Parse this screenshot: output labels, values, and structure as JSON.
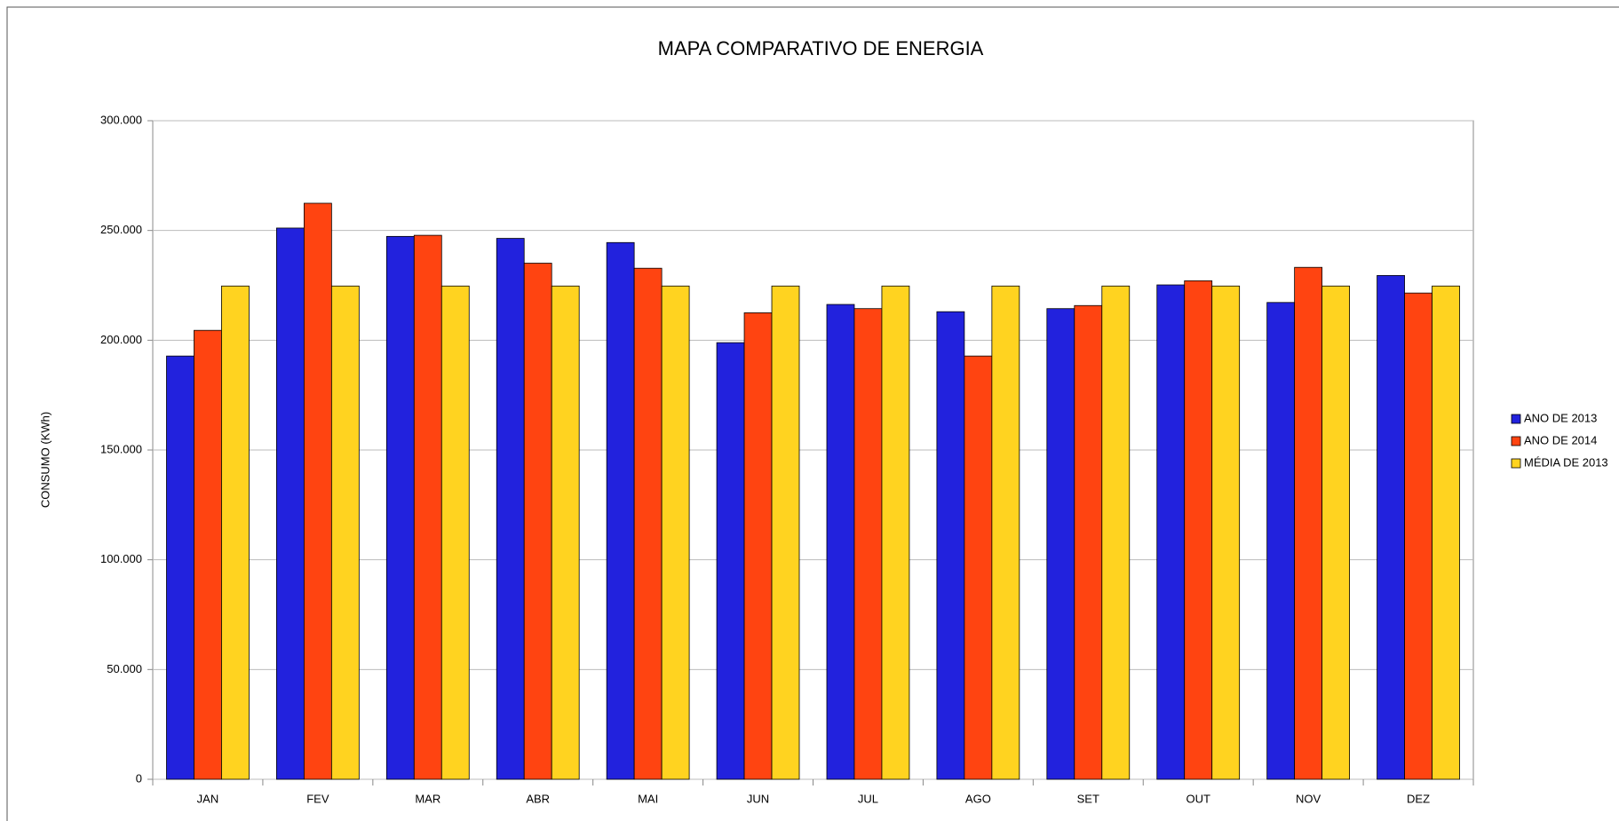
{
  "chart_data": {
    "type": "bar",
    "title": "MAPA COMPARATIVO DE ENERGIA",
    "y_label": "CONSUMO (KWh)",
    "categories": [
      "JAN",
      "FEV",
      "MAR",
      "ABR",
      "MAI",
      "JUN",
      "JUL",
      "AGO",
      "SET",
      "OUT",
      "NOV",
      "DEZ"
    ],
    "series": [
      {
        "name": "ANO DE 2013",
        "color": "#2222dd",
        "values": [
          192800,
          251100,
          247300,
          246400,
          244500,
          198900,
          216300,
          213000,
          214400,
          225200,
          217200,
          229500
        ]
      },
      {
        "name": "ANO DE 2014",
        "color": "#ff4411",
        "values": [
          204500,
          262400,
          247800,
          235100,
          232800,
          212500,
          214400,
          192800,
          215800,
          227100,
          233200,
          221500
        ]
      },
      {
        "name": "MÉDIA DE 2013",
        "color": "#ffd320",
        "values": [
          224700,
          224700,
          224700,
          224700,
          224700,
          224700,
          224700,
          224700,
          224700,
          224700,
          224700,
          224700
        ]
      }
    ],
    "ylim": [
      0,
      300000
    ],
    "yticks": [
      0,
      {
        "value": 50000,
        "label": "50.000"
      },
      {
        "value": 100000,
        "label": "100.000"
      },
      {
        "value": 150000,
        "label": "150.000"
      },
      {
        "value": 200000,
        "label": "200.000"
      },
      {
        "value": 250000,
        "label": "250.000"
      },
      {
        "value": 300000,
        "label": "300.000"
      }
    ],
    "grid": true,
    "legend": "right"
  }
}
